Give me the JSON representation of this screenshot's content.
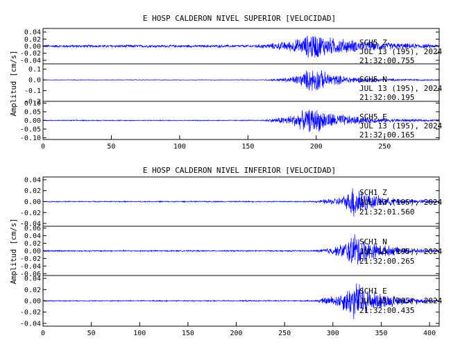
{
  "chart_data": [
    {
      "type": "line",
      "title": "E HOSP CALDERON NIVEL SUPERIOR [VELOCIDAD]",
      "ylabel": "Amplitud [cm/s]",
      "xlim": [
        0,
        290
      ],
      "x_ticks": [
        "0",
        "50",
        "100",
        "150",
        "200",
        "250"
      ],
      "x_tick_values": [
        0,
        50,
        100,
        150,
        200,
        250
      ],
      "panels": [
        {
          "channel": "SCH5   Z",
          "date": "JUL 13 (195), 2024",
          "time": "21:32:00.755",
          "ylim": [
            -0.05,
            0.05
          ],
          "y_ticks": [
            "0.04",
            "0.02",
            "0.00",
            "-0.02",
            "-0.04"
          ],
          "y_tick_values": [
            0.04,
            0.02,
            0.0,
            -0.02,
            -0.04
          ],
          "envelope": {
            "x": [
              0,
              150,
              165,
              180,
              190,
              197,
              200,
              210,
              230,
              250,
              270,
              290
            ],
            "amp": [
              0.004,
              0.004,
              0.008,
              0.016,
              0.026,
              0.045,
              0.04,
              0.028,
              0.018,
              0.012,
              0.008,
              0.005
            ]
          }
        },
        {
          "channel": "SCH5   N",
          "date": "JUL 13 (195), 2024",
          "time": "21:32:00.195",
          "ylim": [
            -0.2,
            0.15
          ],
          "y_ticks": [
            "0.1",
            "0.0",
            "-0.1",
            "-0.2"
          ],
          "y_tick_values": [
            0.1,
            0.0,
            -0.1,
            -0.2
          ],
          "envelope": {
            "x": [
              0,
              160,
              168,
              180,
              190,
              195,
              200,
              205,
              215,
              230,
              250,
              270,
              290
            ],
            "amp": [
              0.003,
              0.003,
              0.01,
              0.025,
              0.07,
              0.12,
              0.13,
              0.09,
              0.05,
              0.03,
              0.015,
              0.008,
              0.005
            ]
          }
        },
        {
          "channel": "SCH5   E",
          "date": "JUL 13 (195), 2024",
          "time": "21:32:00.165",
          "ylim": [
            -0.11,
            0.11
          ],
          "y_ticks": [
            "0.10",
            "0.05",
            "0.00",
            "-0.05",
            "-0.10"
          ],
          "y_tick_values": [
            0.1,
            0.05,
            0.0,
            -0.05,
            -0.1
          ],
          "envelope": {
            "x": [
              0,
              160,
              168,
              180,
              190,
              197,
              203,
              210,
              225,
              240,
              260,
              290
            ],
            "amp": [
              0.003,
              0.003,
              0.012,
              0.03,
              0.06,
              0.08,
              0.07,
              0.05,
              0.03,
              0.018,
              0.01,
              0.005
            ]
          }
        }
      ]
    },
    {
      "type": "line",
      "title": "E HOSP CALDERON NIVEL INFERIOR [VELOCIDAD]",
      "ylabel": "Amplitud [cm/s]",
      "xlim": [
        0,
        410
      ],
      "x_ticks": [
        "0",
        "50",
        "100",
        "150",
        "200",
        "250",
        "300",
        "350",
        "400"
      ],
      "x_tick_values": [
        0,
        50,
        100,
        150,
        200,
        250,
        300,
        350,
        400
      ],
      "panels": [
        {
          "channel": "SCH1   Z",
          "date": "JUL 13 (195), 2024",
          "time": "21:32:01.560",
          "ylim": [
            -0.045,
            0.045
          ],
          "y_ticks": [
            "0.04",
            "0.02",
            "0.00",
            "-0.02",
            "-0.04"
          ],
          "y_tick_values": [
            0.04,
            0.02,
            0.0,
            -0.02,
            -0.04
          ],
          "envelope": {
            "x": [
              0,
              280,
              290,
              305,
              315,
              322,
              328,
              335,
              350,
              370,
              390,
              410
            ],
            "amp": [
              0.001,
              0.0012,
              0.004,
              0.008,
              0.015,
              0.04,
              0.03,
              0.018,
              0.01,
              0.006,
              0.004,
              0.002
            ]
          }
        },
        {
          "channel": "SCH1   N",
          "date": "JUL 13 (195), 2024",
          "time": "21:32:00.265",
          "ylim": [
            -0.065,
            0.065
          ],
          "y_ticks": [
            "0.06",
            "0.04",
            "0.02",
            "0.00",
            "-0.02",
            "-0.04",
            "-0.06"
          ],
          "y_tick_values": [
            0.06,
            0.04,
            0.02,
            0.0,
            -0.02,
            -0.04,
            -0.06
          ],
          "envelope": {
            "x": [
              0,
              280,
              290,
              305,
              315,
              322,
              328,
              335,
              350,
              370,
              390,
              410
            ],
            "amp": [
              0.002,
              0.002,
              0.006,
              0.015,
              0.03,
              0.055,
              0.045,
              0.03,
              0.018,
              0.01,
              0.006,
              0.003
            ]
          }
        },
        {
          "channel": "SCH1   E",
          "date": "JUL 13 (195), 2024",
          "time": "21:32:00.435",
          "ylim": [
            -0.045,
            0.045
          ],
          "y_ticks": [
            "0.04",
            "0.02",
            "0.00",
            "-0.02",
            "-0.04"
          ],
          "y_tick_values": [
            0.04,
            0.02,
            0.0,
            -0.02,
            -0.04
          ],
          "envelope": {
            "x": [
              0,
              280,
              290,
              305,
              315,
              322,
              328,
              335,
              350,
              370,
              390,
              410
            ],
            "amp": [
              0.001,
              0.0012,
              0.006,
              0.012,
              0.025,
              0.04,
              0.035,
              0.025,
              0.015,
              0.008,
              0.005,
              0.003
            ]
          }
        }
      ]
    }
  ],
  "colors": {
    "trace": "#0000ff",
    "axes": "#000000",
    "background": "#ffffff"
  }
}
